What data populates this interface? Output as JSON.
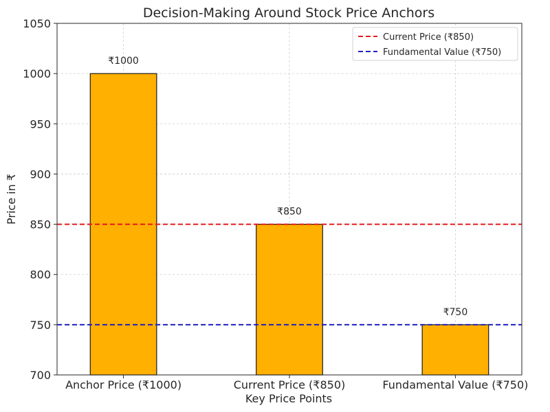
{
  "chart_data": {
    "type": "bar",
    "title": "Decision-Making Around Stock Price Anchors",
    "xlabel": "Key Price Points",
    "ylabel": "Price in ₹",
    "categories": [
      "Anchor Price (₹1000)",
      "Current Price (₹850)",
      "Fundamental Value (₹750)"
    ],
    "values": [
      1000,
      850,
      750
    ],
    "bar_labels": [
      "₹1000",
      "₹850",
      "₹750"
    ],
    "bar_color": "#ffb000",
    "ylim": [
      700,
      1050
    ],
    "yticks": [
      700,
      750,
      800,
      850,
      900,
      950,
      1000,
      1050
    ],
    "grid": true,
    "reference_lines": [
      {
        "name": "Current Price (₹850)",
        "value": 850,
        "color": "#e41a1c",
        "style": "dashed"
      },
      {
        "name": "Fundamental Value (₹750)",
        "value": 750,
        "color": "#1f1fbf",
        "style": "dashed"
      }
    ],
    "legend_position": "top-right"
  }
}
